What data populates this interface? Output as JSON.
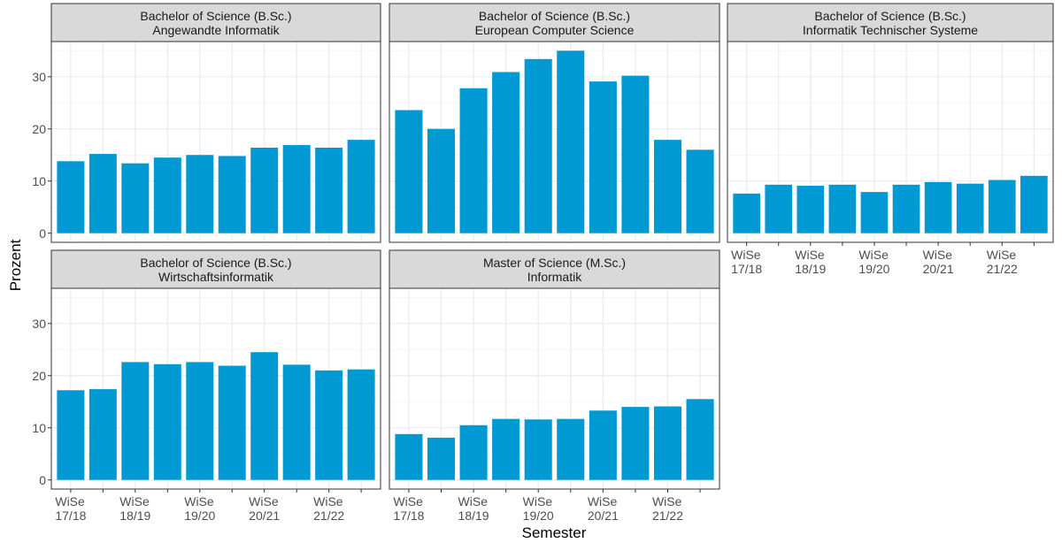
{
  "y_label": "Prozent",
  "x_label": "Semester",
  "chart_data": [
    {
      "type": "bar",
      "title": "Bachelor of Science (B.Sc.)\nAngewandte Informatik",
      "categories": [
        "WiSe\n17/18",
        null,
        "WiSe\n18/19",
        null,
        "WiSe\n19/20",
        null,
        "WiSe\n20/21",
        null,
        "WiSe\n21/22",
        null
      ],
      "values": [
        13.8,
        15.2,
        13.4,
        14.5,
        15.0,
        14.8,
        16.4,
        16.9,
        16.4,
        17.9
      ],
      "color": "#0099d4",
      "ylim": [
        -1.75,
        36.75
      ],
      "yticks": [
        0,
        10,
        20,
        30
      ],
      "y_minor_ticks": [
        5,
        15,
        25,
        35
      ],
      "grid": true,
      "show_x_labels": false,
      "show_y_labels": true
    },
    {
      "type": "bar",
      "title": "Bachelor of Science (B.Sc.)\nEuropean Computer Science",
      "categories": [
        "WiSe\n17/18",
        null,
        "WiSe\n18/19",
        null,
        "WiSe\n19/20",
        null,
        "WiSe\n20/21",
        null,
        "WiSe\n21/22",
        null
      ],
      "values": [
        23.6,
        20.0,
        27.8,
        30.9,
        33.4,
        35.0,
        29.1,
        30.2,
        17.9,
        16.0
      ],
      "color": "#0099d4",
      "ylim": [
        -1.75,
        36.75
      ],
      "yticks": [
        0,
        10,
        20,
        30
      ],
      "y_minor_ticks": [
        5,
        15,
        25,
        35
      ],
      "grid": true,
      "show_x_labels": false,
      "show_y_labels": false
    },
    {
      "type": "bar",
      "title": "Bachelor of Science (B.Sc.)\nInformatik Technischer Systeme",
      "categories": [
        "WiSe\n17/18",
        null,
        "WiSe\n18/19",
        null,
        "WiSe\n19/20",
        null,
        "WiSe\n20/21",
        null,
        "WiSe\n21/22",
        null
      ],
      "values": [
        7.6,
        9.3,
        9.1,
        9.3,
        7.9,
        9.3,
        9.8,
        9.5,
        10.2,
        11.0
      ],
      "color": "#0099d4",
      "ylim": [
        -1.75,
        36.75
      ],
      "yticks": [
        0,
        10,
        20,
        30
      ],
      "y_minor_ticks": [
        5,
        15,
        25,
        35
      ],
      "grid": true,
      "show_x_labels": true,
      "show_y_labels": false
    },
    {
      "type": "bar",
      "title": "Bachelor of Science (B.Sc.)\nWirtschaftsinformatik",
      "categories": [
        "WiSe\n17/18",
        null,
        "WiSe\n18/19",
        null,
        "WiSe\n19/20",
        null,
        "WiSe\n20/21",
        null,
        "WiSe\n21/22",
        null
      ],
      "values": [
        17.2,
        17.4,
        22.6,
        22.2,
        22.6,
        21.9,
        24.5,
        22.1,
        21.0,
        21.2
      ],
      "color": "#0099d4",
      "ylim": [
        -1.75,
        36.75
      ],
      "yticks": [
        0,
        10,
        20,
        30
      ],
      "y_minor_ticks": [
        5,
        15,
        25,
        35
      ],
      "grid": true,
      "show_x_labels": true,
      "show_y_labels": true
    },
    {
      "type": "bar",
      "title": "Master of Science (M.Sc.)\nInformatik",
      "categories": [
        "WiSe\n17/18",
        null,
        "WiSe\n18/19",
        null,
        "WiSe\n19/20",
        null,
        "WiSe\n20/21",
        null,
        "WiSe\n21/22",
        null
      ],
      "values": [
        8.8,
        8.1,
        10.5,
        11.7,
        11.6,
        11.7,
        13.3,
        14.0,
        14.1,
        15.5
      ],
      "color": "#0099d4",
      "ylim": [
        -1.75,
        36.75
      ],
      "yticks": [
        0,
        10,
        20,
        30
      ],
      "y_minor_ticks": [
        5,
        15,
        25,
        35
      ],
      "grid": true,
      "show_x_labels": true,
      "show_y_labels": false
    }
  ]
}
